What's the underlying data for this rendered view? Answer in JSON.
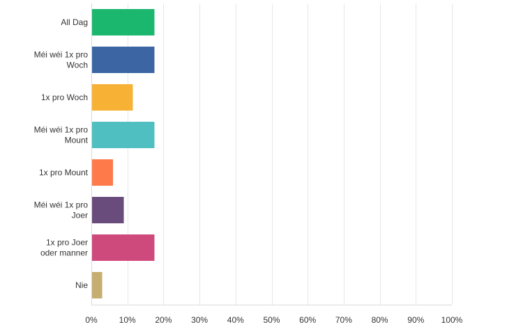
{
  "chart_data": {
    "type": "bar",
    "orientation": "horizontal",
    "title": "",
    "xlabel": "",
    "ylabel": "",
    "categories": [
      [
        "All Dag"
      ],
      [
        "Méi wéi 1x pro",
        "Woch"
      ],
      [
        "1x pro Woch"
      ],
      [
        "Méi wéi 1x pro",
        "Mount"
      ],
      [
        "1x pro Mount"
      ],
      [
        "Méi wéi 1x pro",
        "Joer"
      ],
      [
        "1x pro Joer",
        "oder manner"
      ],
      [
        "Nie"
      ]
    ],
    "values": [
      17.5,
      17.5,
      11.5,
      17.5,
      6,
      9,
      17.5,
      3
    ],
    "colors": [
      "#1bb76e",
      "#3b66a3",
      "#f7b235",
      "#4fbfc1",
      "#ff7a4a",
      "#6a4c7c",
      "#cf4a7c",
      "#c6ad70"
    ],
    "xlim": [
      0,
      100
    ],
    "xticks": [
      "0%",
      "10%",
      "20%",
      "30%",
      "40%",
      "50%",
      "60%",
      "70%",
      "80%",
      "90%",
      "100%"
    ],
    "grid": true,
    "legend": "none"
  }
}
